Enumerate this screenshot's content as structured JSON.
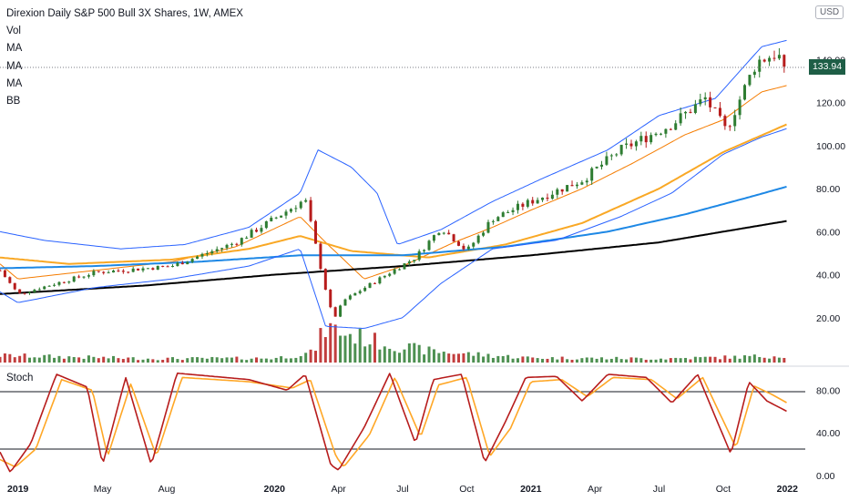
{
  "header": {
    "title": "Direxion Daily S&P 500 Bull 3X Shares, 1W, AMEX",
    "indicators": [
      "Vol",
      "MA",
      "MA",
      "MA",
      "BB"
    ],
    "currency": "USD"
  },
  "last_price": "133.94",
  "stoch_label": "Stoch",
  "colors": {
    "up": "#2e7d32",
    "down": "#b71c1c",
    "bollinger": "#2962ff",
    "ma_fast": "#f57c00",
    "ma_mid": "#f9a825",
    "ma_slow": "#1e88e5",
    "ma_long": "#000000",
    "stoch_k": "#b71c1c",
    "stoch_d": "#ffa726"
  },
  "chart_data": {
    "type": "line",
    "main_panel": {
      "y_ticks": [
        "140.00",
        "120.00",
        "100.00",
        "80.00",
        "60.00",
        "40.00",
        "20.00"
      ],
      "ylim": [
        0,
        155
      ]
    },
    "stoch_panel": {
      "y_ticks": [
        "80.00",
        "40.00",
        "0.00"
      ],
      "ylim": [
        0,
        100
      ],
      "levels": [
        80,
        20
      ]
    },
    "x_ticks": [
      "2019",
      "May",
      "Aug",
      "2020",
      "Apr",
      "Jul",
      "Oct",
      "2021",
      "Apr",
      "Jul",
      "Oct",
      "2022"
    ],
    "x_tick_dates": [
      2019.0,
      2019.33,
      2019.58,
      2020.0,
      2020.25,
      2020.5,
      2020.75,
      2021.0,
      2021.25,
      2021.5,
      2021.75,
      2022.0
    ],
    "close_anchors": [
      [
        2018.93,
        42
      ],
      [
        2019.0,
        31
      ],
      [
        2019.3,
        41
      ],
      [
        2019.6,
        44
      ],
      [
        2019.85,
        55
      ],
      [
        2020.12,
        75
      ],
      [
        2020.2,
        33
      ],
      [
        2020.23,
        19
      ],
      [
        2020.27,
        28
      ],
      [
        2020.45,
        41
      ],
      [
        2020.55,
        48
      ],
      [
        2020.65,
        62
      ],
      [
        2020.75,
        51
      ],
      [
        2020.85,
        66
      ],
      [
        2021.0,
        74
      ],
      [
        2021.2,
        84
      ],
      [
        2021.35,
        98
      ],
      [
        2021.55,
        110
      ],
      [
        2021.68,
        122
      ],
      [
        2021.76,
        107
      ],
      [
        2021.88,
        139
      ],
      [
        2021.96,
        143
      ],
      [
        2022.0,
        133.94
      ]
    ],
    "series": [
      {
        "kind": "ma",
        "anchors": [
          [
            2018.93,
            45
          ],
          [
            2019.0,
            38
          ],
          [
            2019.3,
            42
          ],
          [
            2019.6,
            46
          ],
          [
            2019.85,
            53
          ],
          [
            2020.1,
            67
          ],
          [
            2020.2,
            55
          ],
          [
            2020.35,
            38
          ],
          [
            2020.5,
            44
          ],
          [
            2020.7,
            55
          ],
          [
            2020.85,
            62
          ],
          [
            2021.0,
            70
          ],
          [
            2021.2,
            80
          ],
          [
            2021.4,
            92
          ],
          [
            2021.6,
            105
          ],
          [
            2021.75,
            112
          ],
          [
            2021.9,
            125
          ],
          [
            2022.0,
            128
          ]
        ]
      },
      {
        "kind": "ma",
        "anchors": [
          [
            2018.93,
            48
          ],
          [
            2019.2,
            45
          ],
          [
            2019.6,
            47
          ],
          [
            2019.9,
            52
          ],
          [
            2020.1,
            58
          ],
          [
            2020.3,
            51
          ],
          [
            2020.6,
            48
          ],
          [
            2020.9,
            54
          ],
          [
            2021.2,
            64
          ],
          [
            2021.5,
            80
          ],
          [
            2021.75,
            97
          ],
          [
            2022.0,
            110
          ]
        ]
      },
      {
        "kind": "ma",
        "anchors": [
          [
            2018.93,
            43
          ],
          [
            2019.3,
            44
          ],
          [
            2019.7,
            46
          ],
          [
            2020.1,
            49
          ],
          [
            2020.5,
            49
          ],
          [
            2020.9,
            53
          ],
          [
            2021.3,
            60
          ],
          [
            2021.6,
            68
          ],
          [
            2021.85,
            76
          ],
          [
            2022.0,
            81
          ]
        ]
      },
      {
        "kind": "ma",
        "anchors": [
          [
            2018.93,
            31
          ],
          [
            2019.5,
            35
          ],
          [
            2020.0,
            40
          ],
          [
            2020.5,
            44
          ],
          [
            2021.0,
            49
          ],
          [
            2021.5,
            55
          ],
          [
            2022.0,
            65
          ]
        ]
      },
      {
        "kind": "bb",
        "anchors": [
          [
            2018.93,
            60
          ],
          [
            2019.1,
            56
          ],
          [
            2019.4,
            52
          ],
          [
            2019.65,
            54
          ],
          [
            2019.9,
            62
          ],
          [
            2020.1,
            78
          ],
          [
            2020.17,
            98
          ],
          [
            2020.3,
            90
          ],
          [
            2020.4,
            78
          ],
          [
            2020.48,
            54
          ],
          [
            2020.65,
            61
          ],
          [
            2020.85,
            74
          ],
          [
            2021.05,
            85
          ],
          [
            2021.3,
            98
          ],
          [
            2021.5,
            114
          ],
          [
            2021.72,
            122
          ],
          [
            2021.9,
            146
          ],
          [
            2022.0,
            149
          ]
        ]
      },
      {
        "kind": "bb",
        "anchors": [
          [
            2018.93,
            32
          ],
          [
            2019.0,
            27
          ],
          [
            2019.3,
            34
          ],
          [
            2019.6,
            38
          ],
          [
            2019.9,
            44
          ],
          [
            2020.1,
            52
          ],
          [
            2020.2,
            16
          ],
          [
            2020.35,
            15
          ],
          [
            2020.5,
            20
          ],
          [
            2020.65,
            36
          ],
          [
            2020.85,
            52
          ],
          [
            2021.1,
            56
          ],
          [
            2021.35,
            67
          ],
          [
            2021.55,
            78
          ],
          [
            2021.75,
            96
          ],
          [
            2021.9,
            104
          ],
          [
            2022.0,
            108
          ]
        ]
      },
      {
        "kind": "volume",
        "anchors": [
          [
            2018.93,
            18
          ],
          [
            2019.5,
            10
          ],
          [
            2020.0,
            11
          ],
          [
            2020.15,
            25
          ],
          [
            2020.2,
            90
          ],
          [
            2020.3,
            70
          ],
          [
            2020.45,
            45
          ],
          [
            2020.6,
            30
          ],
          [
            2020.8,
            20
          ],
          [
            2021.0,
            12
          ],
          [
            2021.5,
            10
          ],
          [
            2021.8,
            14
          ],
          [
            2022.0,
            18
          ]
        ]
      },
      {
        "kind": "stoch_k",
        "anchors": [
          [
            2018.93,
            22
          ],
          [
            2018.97,
            3
          ],
          [
            2019.05,
            30
          ],
          [
            2019.15,
            95
          ],
          [
            2019.27,
            83
          ],
          [
            2019.33,
            10
          ],
          [
            2019.42,
            92
          ],
          [
            2019.52,
            10
          ],
          [
            2019.62,
            96
          ],
          [
            2019.9,
            90
          ],
          [
            2020.05,
            80
          ],
          [
            2020.12,
            95
          ],
          [
            2020.22,
            10
          ],
          [
            2020.25,
            5
          ],
          [
            2020.35,
            45
          ],
          [
            2020.45,
            96
          ],
          [
            2020.55,
            30
          ],
          [
            2020.62,
            90
          ],
          [
            2020.73,
            95
          ],
          [
            2020.82,
            12
          ],
          [
            2020.9,
            50
          ],
          [
            2020.98,
            92
          ],
          [
            2021.1,
            93
          ],
          [
            2021.2,
            70
          ],
          [
            2021.3,
            95
          ],
          [
            2021.45,
            92
          ],
          [
            2021.55,
            68
          ],
          [
            2021.65,
            95
          ],
          [
            2021.78,
            20
          ],
          [
            2021.85,
            88
          ],
          [
            2021.92,
            70
          ],
          [
            2022.0,
            60
          ]
        ]
      },
      {
        "kind": "stoch_d",
        "anchors": [
          [
            2018.93,
            15
          ],
          [
            2018.99,
            8
          ],
          [
            2019.07,
            25
          ],
          [
            2019.17,
            90
          ],
          [
            2019.29,
            80
          ],
          [
            2019.35,
            18
          ],
          [
            2019.44,
            86
          ],
          [
            2019.54,
            18
          ],
          [
            2019.64,
            92
          ],
          [
            2019.9,
            88
          ],
          [
            2020.07,
            82
          ],
          [
            2020.14,
            90
          ],
          [
            2020.24,
            18
          ],
          [
            2020.27,
            8
          ],
          [
            2020.37,
            38
          ],
          [
            2020.47,
            92
          ],
          [
            2020.57,
            36
          ],
          [
            2020.64,
            85
          ],
          [
            2020.75,
            92
          ],
          [
            2020.84,
            18
          ],
          [
            2020.92,
            44
          ],
          [
            2021.0,
            88
          ],
          [
            2021.12,
            90
          ],
          [
            2021.22,
            74
          ],
          [
            2021.32,
            92
          ],
          [
            2021.47,
            90
          ],
          [
            2021.57,
            72
          ],
          [
            2021.67,
            92
          ],
          [
            2021.8,
            26
          ],
          [
            2021.87,
            84
          ],
          [
            2021.94,
            76
          ],
          [
            2022.0,
            68
          ]
        ]
      }
    ]
  }
}
